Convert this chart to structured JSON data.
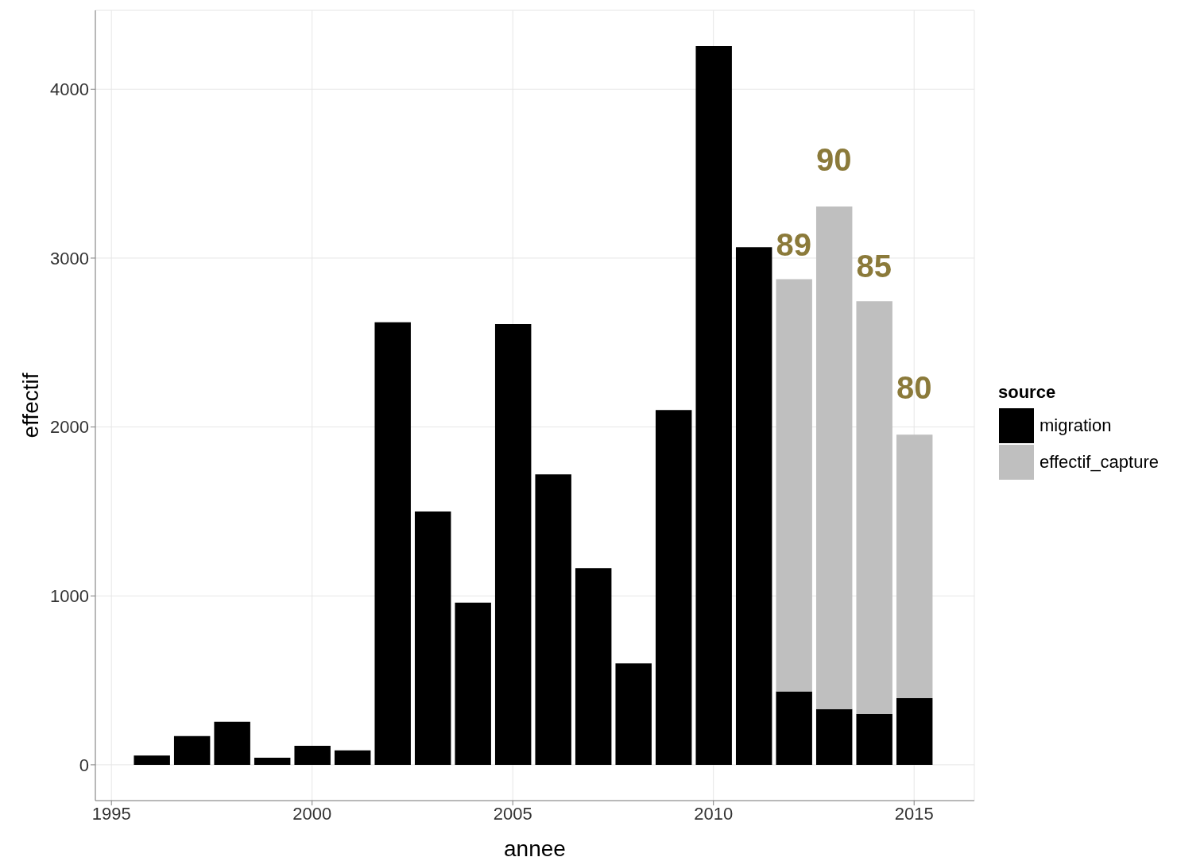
{
  "chart_data": {
    "type": "bar",
    "stacked": true,
    "xlabel": "annee",
    "ylabel": "effectif",
    "legend_title": "source",
    "legend": "right",
    "grid": true,
    "x": [
      1996,
      1997,
      1998,
      1999,
      2000,
      2001,
      2002,
      2003,
      2004,
      2005,
      2006,
      2007,
      2008,
      2009,
      2010,
      2011,
      2012,
      2013,
      2014,
      2015
    ],
    "series": [
      {
        "name": "migration",
        "color": "#000000",
        "values": [
          55,
          170,
          255,
          42,
          113,
          85,
          2620,
          1500,
          960,
          2610,
          1720,
          1165,
          600,
          2100,
          4255,
          3065,
          435,
          330,
          300,
          395
        ]
      },
      {
        "name": "effectif_capture",
        "color": "#bfbfbf",
        "values": [
          null,
          null,
          null,
          null,
          null,
          null,
          null,
          null,
          null,
          null,
          null,
          null,
          null,
          null,
          null,
          null,
          2440,
          2975,
          2445,
          1560
        ]
      }
    ],
    "xlim": [
      1994.6,
      2016.5
    ],
    "xticks": [
      1995,
      2000,
      2005,
      2010,
      2015
    ],
    "ylim": [
      -212,
      4467
    ],
    "yticks": [
      0,
      1000,
      2000,
      3000,
      4000
    ],
    "annotations": [
      "89",
      "90",
      "85",
      "80"
    ]
  }
}
